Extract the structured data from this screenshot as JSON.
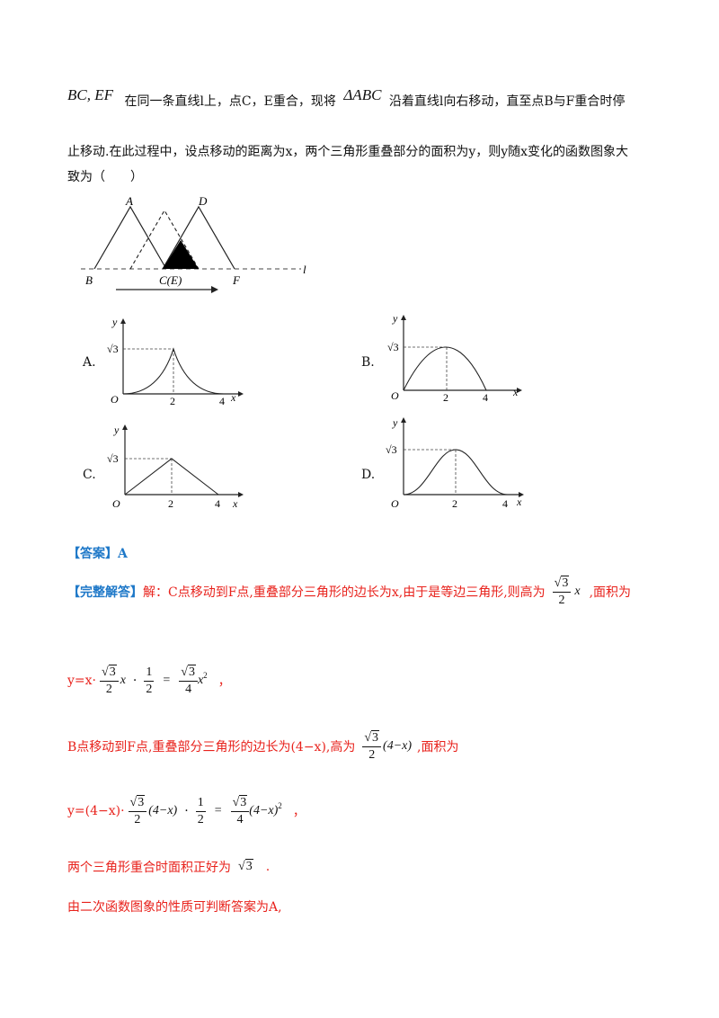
{
  "problem": {
    "seg_label": "BC, EF",
    "line1_a": "在同一条直线l上，点C，E重合，现将",
    "triangle_label": "ΔABC",
    "line1_b": "沿着直线l向右移动，直至点B与F重合时停",
    "line2": "止移动.在此过程中，设点移动的距离为x，两个三角形重叠部分的面积为y，则y随x变化的函数图象大",
    "line3": "致为（　　）"
  },
  "figure": {
    "labels": {
      "A": "A",
      "D": "D",
      "B": "B",
      "CE": "C(E)",
      "F": "F",
      "l": "l"
    }
  },
  "options": [
    {
      "letter": "A.",
      "curve": "convex-up-then-down",
      "y_tick": "√3",
      "x_ticks": [
        "2",
        "4"
      ],
      "origin": "O",
      "x_axis": "x",
      "y_axis": "y"
    },
    {
      "letter": "B.",
      "curve": "concave-arch",
      "y_tick": "√3",
      "x_ticks": [
        "2",
        "4"
      ],
      "origin": "O",
      "x_axis": "x",
      "y_axis": "y"
    },
    {
      "letter": "C.",
      "curve": "linear-triangle",
      "y_tick": "√3",
      "x_ticks": [
        "2",
        "4"
      ],
      "origin": "O",
      "x_axis": "x",
      "y_axis": "y"
    },
    {
      "letter": "D.",
      "curve": "bell",
      "y_tick": "√3",
      "x_ticks": [
        "2",
        "4"
      ],
      "origin": "O",
      "x_axis": "x",
      "y_axis": "y"
    }
  ],
  "answer": {
    "tag": "【答案】",
    "value": "A"
  },
  "solution": {
    "tag": "【完整解答】",
    "s1": "解：C点移动到F点,重叠部分三角形的边长为x,由于是等边三角形,则高为",
    "s1_end": ",面积为",
    "eq1_prefix": "y=x·",
    "s2": "B点移动到F点,重叠部分三角形的边长为(4−x),高为",
    "s2_end": ",面积为",
    "eq2_prefix": "y=(4−x)·",
    "s3": "两个三角形重合时面积正好为",
    "s3_end": ".",
    "s4": "由二次函数图象的性质可判断答案为A,"
  },
  "math": {
    "sqrt3": "3",
    "two": "2",
    "four": "4",
    "one": "1",
    "x": "x",
    "four_minus_x": "(4−x)",
    "dot": "·",
    "eq": "=",
    "sq": "2",
    "comma": "，"
  }
}
